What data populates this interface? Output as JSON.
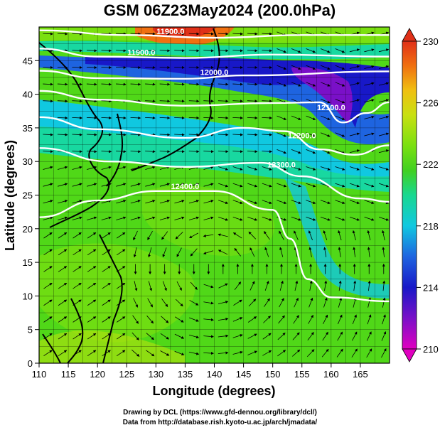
{
  "chart_data": {
    "type": "heatmap",
    "title": "GSM 06Z23May2024 (200.0hPa)",
    "xlabel": "Longitude (degrees)",
    "ylabel": "Latitude  (degrees)",
    "xlim": [
      110,
      170
    ],
    "ylim": [
      0,
      50
    ],
    "x_ticks": [
      "110",
      "115",
      "120",
      "125",
      "130",
      "135",
      "140",
      "145",
      "150",
      "155",
      "160",
      "165"
    ],
    "y_ticks": [
      "0",
      "5",
      "10",
      "15",
      "20",
      "25",
      "30",
      "35",
      "40",
      "45"
    ],
    "colorbar": {
      "range": [
        210,
        230
      ],
      "ticks": [
        "210",
        "214",
        "218",
        "222",
        "226",
        "230"
      ],
      "colors": [
        "#e000c0",
        "#7a10c8",
        "#1818c8",
        "#1e64e0",
        "#10c8e0",
        "#18d890",
        "#40d020",
        "#7ae010",
        "#c8e010",
        "#f0c010",
        "#f07010",
        "#e03018"
      ]
    },
    "contours": [
      {
        "label": "11900.0",
        "lat_at": [
          [
            110,
            49.5
          ],
          [
            125,
            48.8
          ],
          [
            140,
            48.4
          ],
          [
            155,
            48.8
          ],
          [
            170,
            48.8
          ]
        ]
      },
      {
        "label": "11900.0",
        "lat_at": [
          [
            110,
            46.8
          ],
          [
            120,
            45.6
          ],
          [
            135,
            45.4
          ],
          [
            150,
            45.9
          ],
          [
            170,
            45.6
          ]
        ]
      },
      {
        "label": "12000.0",
        "lat_at": [
          [
            110,
            43.5
          ],
          [
            120,
            42.4
          ],
          [
            135,
            42.3
          ],
          [
            145,
            42.8
          ],
          [
            170,
            43.4
          ]
        ]
      },
      {
        "label": "12100.0",
        "lat_at": [
          [
            110,
            40.5
          ],
          [
            120,
            39.2
          ],
          [
            135,
            38.3
          ],
          [
            150,
            38.7
          ],
          [
            158,
            38.8
          ],
          [
            162,
            35.8
          ],
          [
            166,
            37.2
          ],
          [
            170,
            38.8
          ]
        ]
      },
      {
        "label": "12200.0",
        "lat_at": [
          [
            110,
            36.6
          ],
          [
            120,
            34.8
          ],
          [
            135,
            33.5
          ],
          [
            145,
            35.0
          ],
          [
            152,
            34.5
          ],
          [
            158,
            31.8
          ],
          [
            164,
            31.0
          ],
          [
            170,
            32.4
          ]
        ]
      },
      {
        "label": "12300.0",
        "lat_at": [
          [
            110,
            32.0
          ],
          [
            122,
            30.0
          ],
          [
            135,
            29.2
          ],
          [
            148,
            29.8
          ],
          [
            155,
            27.8
          ],
          [
            165,
            24.5
          ],
          [
            170,
            24.0
          ]
        ]
      },
      {
        "label": "12400.0",
        "lat_at": [
          [
            110,
            21.7
          ],
          [
            120,
            24.2
          ],
          [
            130,
            25.6
          ],
          [
            140,
            25.6
          ],
          [
            150,
            22.8
          ],
          [
            153,
            18.5
          ],
          [
            156,
            12.5
          ],
          [
            160,
            9.8
          ],
          [
            170,
            9.2
          ]
        ]
      }
    ],
    "temperature_field_note_values": [
      {
        "lat": 48,
        "lon": 128,
        "value": 227
      },
      {
        "lat": 40,
        "lon": 160,
        "value": 212
      },
      {
        "lat": 42,
        "lon": 135,
        "value": 215
      },
      {
        "lat": 15,
        "lon": 140,
        "value": 222
      },
      {
        "lat": 5,
        "lon": 115,
        "value": 221
      }
    ]
  },
  "credits": {
    "line1": "Drawing by DCL (https://www.gfd-dennou.org/library/dcl/)",
    "line2": "Data from http://database.rish.kyoto-u.ac.jp/arch/jmadata/"
  }
}
